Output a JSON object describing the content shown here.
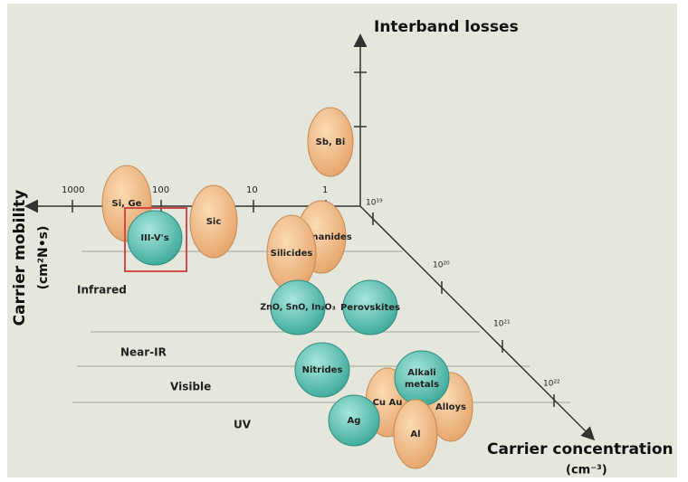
{
  "axes": {
    "vertical": "Interband losses",
    "depth": "Carrier concentration",
    "depth_unit": "(cm⁻³)",
    "horizontal": "Carrier mobility",
    "horizontal_unit": "(cm²N•s)"
  },
  "mobility_ticks": [
    "1000",
    "100",
    "10",
    "1"
  ],
  "concentration_ticks": [
    "10¹⁹",
    "10²⁰",
    "10²¹",
    "10²²"
  ],
  "bands": [
    "Infrared",
    "Near-IR",
    "Visible",
    "UV"
  ],
  "nodes": [
    {
      "label": "Sb, Bi"
    },
    {
      "label": "Si, Ge"
    },
    {
      "label": "Sic"
    },
    {
      "label": "Germanides"
    },
    {
      "label": "Silicides"
    },
    {
      "label": "III-V's"
    },
    {
      "label": "ZnO, SnO, In₂O₃"
    },
    {
      "label": "Perovskites"
    },
    {
      "label": "Nitrides"
    },
    {
      "label": "Cu Au"
    },
    {
      "label": "Alloys"
    },
    {
      "label": "Alkali metals"
    },
    {
      "label": "Al"
    },
    {
      "label": "Ag"
    }
  ]
}
